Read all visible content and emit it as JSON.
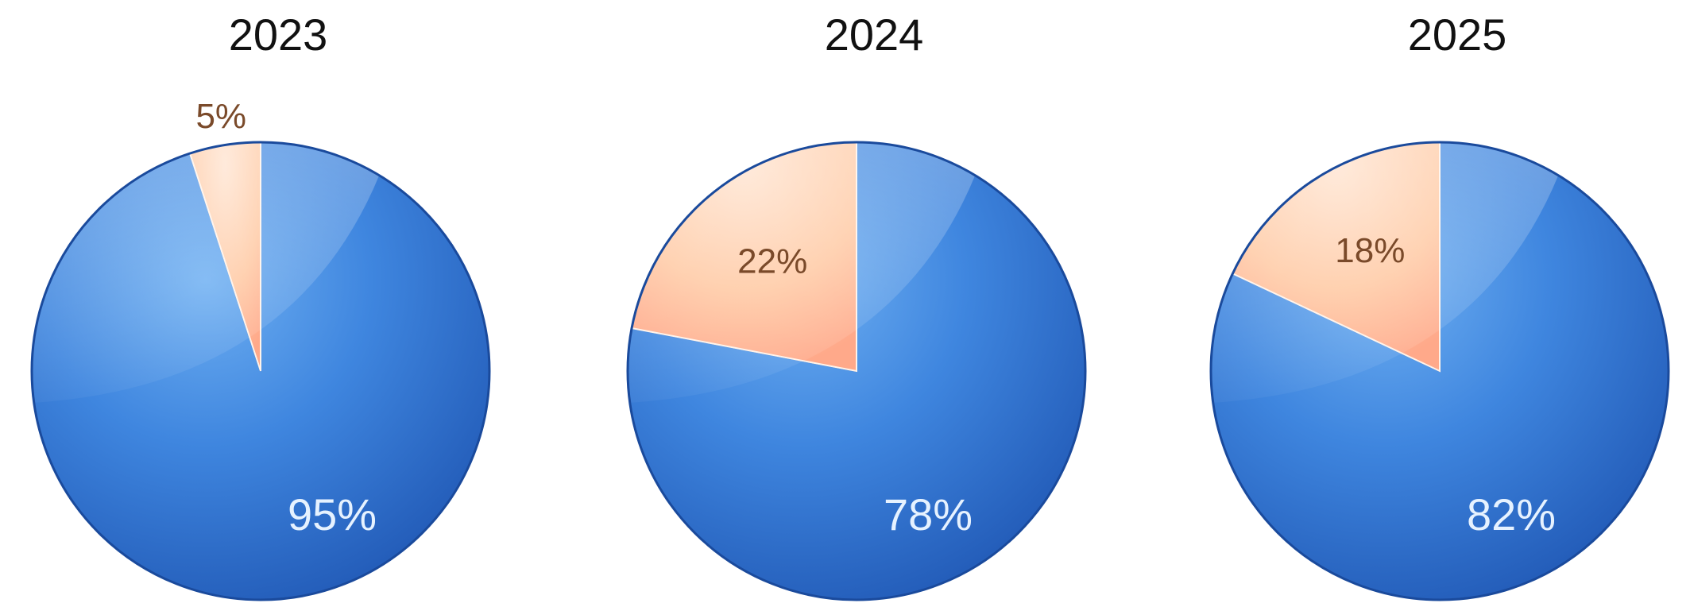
{
  "colors": {
    "main_slice": "#2f6fcf",
    "minor_slice": "#ffc9a3",
    "title": "#111111"
  },
  "chart_data": [
    {
      "type": "pie",
      "title": "2023",
      "slices": [
        {
          "label": "5%",
          "value": 5
        },
        {
          "label": "95%",
          "value": 95
        }
      ]
    },
    {
      "type": "pie",
      "title": "2024",
      "slices": [
        {
          "label": "22%",
          "value": 22
        },
        {
          "label": "78%",
          "value": 78
        }
      ]
    },
    {
      "type": "pie",
      "title": "2025",
      "slices": [
        {
          "label": "18%",
          "value": 18
        },
        {
          "label": "82%",
          "value": 82
        }
      ]
    }
  ]
}
